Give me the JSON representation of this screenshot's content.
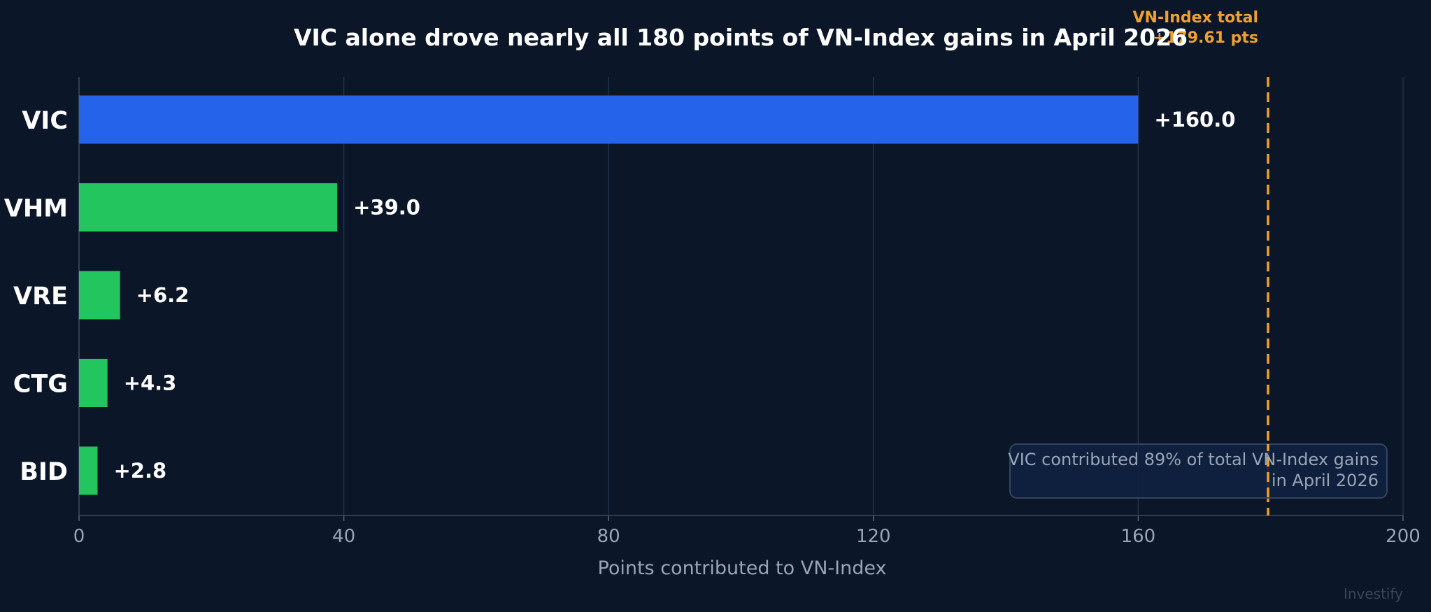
{
  "chart_data": {
    "type": "bar",
    "orientation": "horizontal",
    "title": "VIC alone drove nearly all 180 points of VN-Index gains in April 2026",
    "categories": [
      "VIC",
      "VHM",
      "VRE",
      "CTG",
      "BID"
    ],
    "values": [
      160.0,
      39.0,
      6.2,
      4.3,
      2.8
    ],
    "value_labels": [
      "+160.0",
      "+39.0",
      "+6.2",
      "+4.3",
      "+2.8"
    ],
    "bar_colors": [
      "#2563eb",
      "#22c55e",
      "#22c55e",
      "#22c55e",
      "#22c55e"
    ],
    "xlabel": "Points contributed to VN-Index",
    "ylabel": "",
    "xlim": [
      0,
      200
    ],
    "xticks": [
      0,
      40,
      80,
      120,
      160,
      200
    ],
    "grid": "vertical",
    "reference_line": {
      "value": 179.61,
      "color": "#f0a030",
      "label_lines": [
        "VN-Index total",
        "+179.61 pts"
      ]
    },
    "annotation_lines": [
      "VIC contributed 89% of total VN-Index gains",
      "in April 2026"
    ],
    "watermark": "Investify"
  },
  "colors": {
    "background": "#0b1628",
    "grid": "#22324d",
    "text": "#ffffff",
    "muted": "#9aa5b4",
    "accent": "#f0a030",
    "note_box_fill": "#102241",
    "note_box_border": "#34455f"
  }
}
